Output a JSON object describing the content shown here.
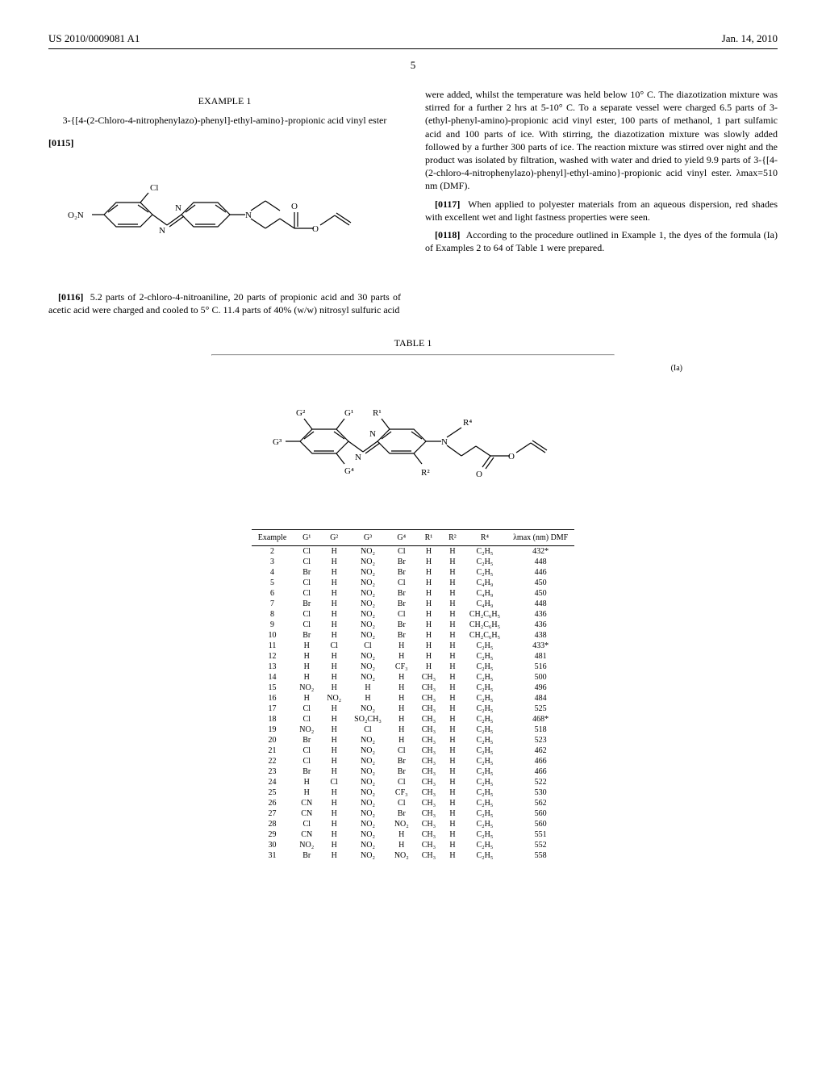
{
  "header": {
    "left": "US 2010/0009081 A1",
    "right": "Jan. 14, 2010"
  },
  "page_number": "5",
  "col_left": {
    "example_heading": "EXAMPLE 1",
    "subheading": "3-{[4-(2-Chloro-4-nitrophenylazo)-phenyl]-ethyl-amino}-propionic acid vinyl ester",
    "para_0115": "[0115]",
    "structure1": {
      "labels": {
        "o2n": "O₂N",
        "cl": "Cl",
        "n1": "N",
        "n2": "N",
        "n3": "N",
        "o": "O",
        "o2": "O"
      },
      "colors": {
        "stroke": "#000000",
        "fill": "none",
        "text": "#000000"
      },
      "line_width": 1.2
    },
    "para_0116_num": "[0116]",
    "para_0116": "5.2 parts of 2-chloro-4-nitroaniline, 20 parts of propionic acid and 30 parts of acetic acid were charged and cooled to 5° C. 11.4 parts of 40% (w/w) nitrosyl sulfuric acid"
  },
  "col_right": {
    "para_cont": "were added, whilst the temperature was held below 10° C. The diazotization mixture was stirred for a further 2 hrs at 5-10° C. To a separate vessel were charged 6.5 parts of 3-(ethyl-phenyl-amino)-propionic acid vinyl ester, 100 parts of methanol, 1 part sulfamic acid and 100 parts of ice. With stirring, the diazotization mixture was slowly added followed by a further 300 parts of ice. The reaction mixture was stirred over night and the product was isolated by filtration, washed with water and dried to yield 9.9 parts of 3-{[4-(2-chloro-4-nitrophenylazo)-phenyl]-ethyl-amino}-propionic acid vinyl ester. λmax=510 nm (DMF).",
    "para_0117_num": "[0117]",
    "para_0117": "When applied to polyester materials from an aqueous dispersion, red shades with excellent wet and light fastness properties were seen.",
    "para_0118_num": "[0118]",
    "para_0118": "According to the procedure outlined in Example 1, the dyes of the formula (Ia) of Examples 2 to 64 of Table 1 were prepared."
  },
  "table": {
    "label": "TABLE 1",
    "formula_tag": "(Ia)",
    "structure2": {
      "labels": {
        "g1": "G¹",
        "g2": "G²",
        "g3": "G³",
        "g4": "G⁴",
        "r1": "R¹",
        "r2": "R²",
        "r4": "R⁴",
        "n": "N",
        "o": "O"
      },
      "colors": {
        "stroke": "#000000",
        "text": "#000000"
      },
      "line_width": 1.2
    },
    "columns": [
      "Example",
      "G¹",
      "G²",
      "G³",
      "G⁴",
      "R¹",
      "R²",
      "R⁴",
      "λmax (nm) DMF"
    ],
    "rows": [
      [
        "2",
        "Cl",
        "H",
        "NO₂",
        "Cl",
        "H",
        "H",
        "C₂H₅",
        "432*"
      ],
      [
        "3",
        "Cl",
        "H",
        "NO₂",
        "Br",
        "H",
        "H",
        "C₂H₅",
        "448"
      ],
      [
        "4",
        "Br",
        "H",
        "NO₂",
        "Br",
        "H",
        "H",
        "C₂H₅",
        "446"
      ],
      [
        "5",
        "Cl",
        "H",
        "NO₂",
        "Cl",
        "H",
        "H",
        "C₄H₉",
        "450"
      ],
      [
        "6",
        "Cl",
        "H",
        "NO₂",
        "Br",
        "H",
        "H",
        "C₄H₉",
        "450"
      ],
      [
        "7",
        "Br",
        "H",
        "NO₂",
        "Br",
        "H",
        "H",
        "C₄H₉",
        "448"
      ],
      [
        "8",
        "Cl",
        "H",
        "NO₂",
        "Cl",
        "H",
        "H",
        "CH₂C₆H₅",
        "436"
      ],
      [
        "9",
        "Cl",
        "H",
        "NO₂",
        "Br",
        "H",
        "H",
        "CH₂C₆H₅",
        "436"
      ],
      [
        "10",
        "Br",
        "H",
        "NO₂",
        "Br",
        "H",
        "H",
        "CH₂C₆H₅",
        "438"
      ],
      [
        "11",
        "H",
        "Cl",
        "Cl",
        "H",
        "H",
        "H",
        "C₂H₅",
        "433*"
      ],
      [
        "12",
        "H",
        "H",
        "NO₂",
        "H",
        "H",
        "H",
        "C₂H₅",
        "481"
      ],
      [
        "13",
        "H",
        "H",
        "NO₂",
        "CF₃",
        "H",
        "H",
        "C₂H₅",
        "516"
      ],
      [
        "14",
        "H",
        "H",
        "NO₂",
        "H",
        "CH₃",
        "H",
        "C₂H₅",
        "500"
      ],
      [
        "15",
        "NO₂",
        "H",
        "H",
        "H",
        "CH₃",
        "H",
        "C₂H₅",
        "496"
      ],
      [
        "16",
        "H",
        "NO₂",
        "H",
        "H",
        "CH₃",
        "H",
        "C₂H₅",
        "484"
      ],
      [
        "17",
        "Cl",
        "H",
        "NO₂",
        "H",
        "CH₃",
        "H",
        "C₂H₅",
        "525"
      ],
      [
        "18",
        "Cl",
        "H",
        "SO₂CH₃",
        "H",
        "CH₃",
        "H",
        "C₂H₅",
        "468*"
      ],
      [
        "19",
        "NO₂",
        "H",
        "Cl",
        "H",
        "CH₃",
        "H",
        "C₂H₅",
        "518"
      ],
      [
        "20",
        "Br",
        "H",
        "NO₂",
        "H",
        "CH₃",
        "H",
        "C₂H₅",
        "523"
      ],
      [
        "21",
        "Cl",
        "H",
        "NO₂",
        "Cl",
        "CH₃",
        "H",
        "C₂H₅",
        "462"
      ],
      [
        "22",
        "Cl",
        "H",
        "NO₂",
        "Br",
        "CH₃",
        "H",
        "C₂H₅",
        "466"
      ],
      [
        "23",
        "Br",
        "H",
        "NO₂",
        "Br",
        "CH₃",
        "H",
        "C₂H₅",
        "466"
      ],
      [
        "24",
        "H",
        "Cl",
        "NO₂",
        "Cl",
        "CH₃",
        "H",
        "C₂H₅",
        "522"
      ],
      [
        "25",
        "H",
        "H",
        "NO₂",
        "CF₃",
        "CH₃",
        "H",
        "C₂H₅",
        "530"
      ],
      [
        "26",
        "CN",
        "H",
        "NO₂",
        "Cl",
        "CH₃",
        "H",
        "C₂H₅",
        "562"
      ],
      [
        "27",
        "CN",
        "H",
        "NO₂",
        "Br",
        "CH₃",
        "H",
        "C₂H₅",
        "560"
      ],
      [
        "28",
        "Cl",
        "H",
        "NO₂",
        "NO₂",
        "CH₃",
        "H",
        "C₂H₅",
        "560"
      ],
      [
        "29",
        "CN",
        "H",
        "NO₂",
        "H",
        "CH₃",
        "H",
        "C₂H₅",
        "551"
      ],
      [
        "30",
        "NO₂",
        "H",
        "NO₂",
        "H",
        "CH₃",
        "H",
        "C₂H₅",
        "552"
      ],
      [
        "31",
        "Br",
        "H",
        "NO₂",
        "NO₂",
        "CH₃",
        "H",
        "C₂H₅",
        "558"
      ]
    ]
  }
}
